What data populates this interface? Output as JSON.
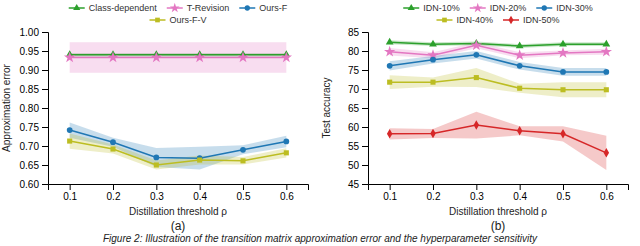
{
  "chart_data": [
    {
      "type": "line",
      "x": [
        0.1,
        0.2,
        0.3,
        0.4,
        0.5,
        0.6
      ],
      "xlim": [
        0.05,
        0.65
      ],
      "xticks": [
        0.1,
        0.2,
        0.3,
        0.4,
        0.5,
        0.6
      ],
      "ylim": [
        0.6,
        1.0
      ],
      "yticks": [
        {
          "value": 0.6,
          "label": "0.60"
        },
        {
          "value": 0.65,
          "label": "0.65"
        },
        {
          "value": 0.7,
          "label": "0.70"
        },
        {
          "value": 0.75,
          "label": "0.75"
        },
        {
          "value": 0.8,
          "label": "0.80"
        },
        {
          "value": 0.85,
          "label": "0.85"
        },
        {
          "value": 0.9,
          "label": "0.90"
        },
        {
          "value": 0.95,
          "label": "0.95"
        },
        {
          "value": 1.0,
          "label": "1.00"
        }
      ],
      "xlabel": "Distillation threshold ρ",
      "ylabel": "Approximation error",
      "annotations": [
        "(a)"
      ],
      "grid": false,
      "legend": "top",
      "series": [
        {
          "name": "Class-dependent",
          "color": "#2ca02c",
          "marker": "triangle",
          "values": [
            0.94,
            0.94,
            0.94,
            0.94,
            0.94,
            0.94
          ],
          "std": [
            0.005,
            0.005,
            0.005,
            0.005,
            0.005,
            0.005
          ]
        },
        {
          "name": "T-Revision",
          "color": "#e377c2",
          "marker": "star",
          "values": [
            0.933,
            0.933,
            0.933,
            0.933,
            0.933,
            0.933
          ],
          "std": [
            0.04,
            0.04,
            0.04,
            0.04,
            0.04,
            0.04
          ]
        },
        {
          "name": "Ours-F",
          "color": "#1f77b4",
          "marker": "circle",
          "values": [
            0.742,
            0.71,
            0.67,
            0.668,
            0.69,
            0.712
          ],
          "std": [
            0.02,
            0.012,
            0.025,
            0.03,
            0.012,
            0.015
          ]
        },
        {
          "name": "Ours-F-V",
          "color": "#bcbd22",
          "marker": "square",
          "values": [
            0.713,
            0.692,
            0.65,
            0.663,
            0.661,
            0.682
          ],
          "std": [
            0.02,
            0.012,
            0.012,
            0.012,
            0.01,
            0.012
          ]
        }
      ]
    },
    {
      "type": "line",
      "x": [
        0.1,
        0.2,
        0.3,
        0.4,
        0.5,
        0.6
      ],
      "xlim": [
        0.05,
        0.65
      ],
      "xticks": [
        0.1,
        0.2,
        0.3,
        0.4,
        0.5,
        0.6
      ],
      "ylim": [
        45,
        85
      ],
      "yticks": [
        45,
        50,
        55,
        60,
        65,
        70,
        75,
        80,
        85
      ],
      "xlabel": "Distillation threshold ρ",
      "ylabel": "Test accuracy",
      "annotations": [
        "(b)"
      ],
      "grid": false,
      "legend": "top",
      "series": [
        {
          "name": "IDN-10%",
          "color": "#2ca02c",
          "marker": "triangle",
          "values": [
            82.3,
            81.8,
            82.0,
            81.3,
            81.8,
            81.8
          ],
          "std": [
            0.5,
            0.5,
            0.5,
            0.5,
            0.5,
            0.5
          ]
        },
        {
          "name": "IDN-20%",
          "color": "#e377c2",
          "marker": "star",
          "values": [
            79.8,
            78.9,
            81.5,
            78.9,
            79.5,
            79.8
          ],
          "std": [
            1.0,
            0.8,
            0.8,
            0.8,
            0.6,
            0.8
          ]
        },
        {
          "name": "IDN-30%",
          "color": "#1f77b4",
          "marker": "circle",
          "values": [
            76.1,
            77.7,
            79.0,
            76.1,
            74.5,
            74.5
          ],
          "std": [
            1.2,
            1.0,
            1.0,
            1.0,
            1.0,
            1.0
          ]
        },
        {
          "name": "IDN-40%",
          "color": "#bcbd22",
          "marker": "square",
          "values": [
            71.8,
            71.8,
            73.0,
            70.2,
            69.8,
            69.8
          ],
          "std": [
            1.8,
            1.2,
            2.5,
            1.2,
            2.0,
            2.0
          ]
        },
        {
          "name": "IDN-50%",
          "color": "#d62728",
          "marker": "diamond",
          "values": [
            58.2,
            58.3,
            60.5,
            59.0,
            58.2,
            53.2
          ],
          "std": [
            1.5,
            1.2,
            3.5,
            1.2,
            2.0,
            4.5
          ]
        }
      ]
    }
  ],
  "caption": "Figure 2: Illustration of the transition matrix approximation error and the hyperparameter sensitivity"
}
